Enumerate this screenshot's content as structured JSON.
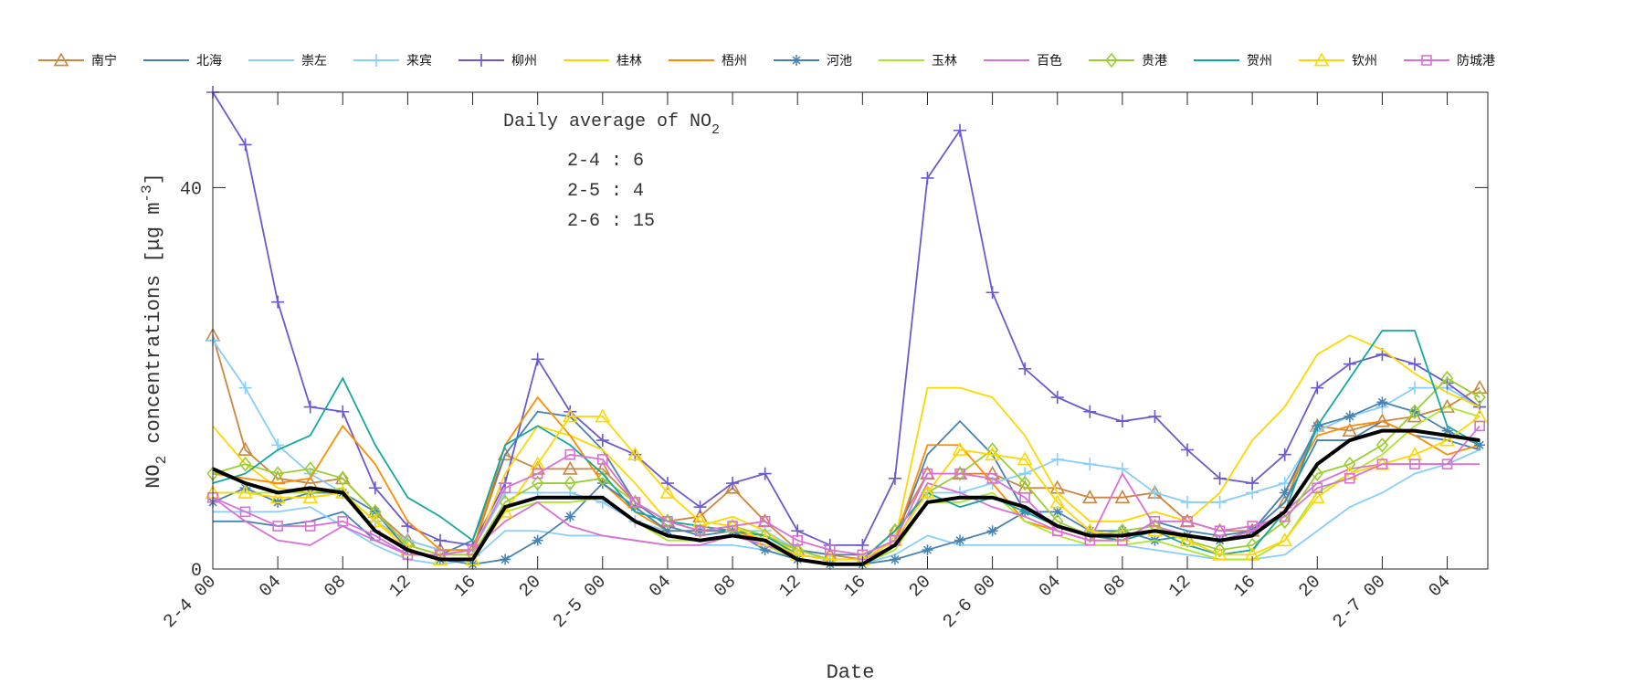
{
  "chart_data": {
    "type": "line",
    "title": "Daily average of NO2",
    "annotation": {
      "title": "Daily average of NO",
      "title_sub": "2",
      "lines": [
        "2-4 : 6",
        "2-5 : 4",
        "2-6 : 15"
      ]
    },
    "xlabel": "Date",
    "ylabel": "NO2 concentrations [μg m-3]",
    "ylabel_parts": {
      "a": "NO",
      "sub": "2",
      "b": " concentrations [μg m",
      "sup": "-3",
      "c": "]"
    },
    "ylim": [
      0,
      50
    ],
    "yticks": [
      0,
      40
    ],
    "xlim_hours": [
      0,
      78.5
    ],
    "xticks": [
      {
        "h": 0,
        "label": "2-4 00"
      },
      {
        "h": 4,
        "label": "04"
      },
      {
        "h": 8,
        "label": "08"
      },
      {
        "h": 12,
        "label": "12"
      },
      {
        "h": 16,
        "label": "16"
      },
      {
        "h": 20,
        "label": "20"
      },
      {
        "h": 24,
        "label": "2-5 00"
      },
      {
        "h": 28,
        "label": "04"
      },
      {
        "h": 32,
        "label": "08"
      },
      {
        "h": 36,
        "label": "12"
      },
      {
        "h": 40,
        "label": "16"
      },
      {
        "h": 44,
        "label": "20"
      },
      {
        "h": 48,
        "label": "2-6 00"
      },
      {
        "h": 52,
        "label": "04"
      },
      {
        "h": 56,
        "label": "08"
      },
      {
        "h": 60,
        "label": "12"
      },
      {
        "h": 64,
        "label": "16"
      },
      {
        "h": 68,
        "label": "20"
      },
      {
        "h": 72,
        "label": "2-7 00"
      },
      {
        "h": 76,
        "label": "04"
      }
    ],
    "x_hours_step": 2,
    "grid": false,
    "legend_position": "top",
    "series": [
      {
        "name": "南宁",
        "color": "#CD853F",
        "marker": "triangle",
        "values": [
          24.5,
          12.5,
          9.5,
          9,
          9.5,
          6,
          3,
          2,
          2,
          12,
          10.5,
          10.5,
          10.5,
          7,
          5,
          5.5,
          8.5,
          5,
          2,
          1.5,
          1,
          4,
          10,
          10,
          10,
          8.5,
          8.5,
          7.5,
          7.5,
          8,
          5,
          4,
          4,
          7,
          15,
          14.5,
          15.5,
          16,
          17,
          19
        ]
      },
      {
        "name": "北海",
        "color": "#4682B4",
        "marker": "none",
        "values": [
          5,
          5,
          4.5,
          5,
          6,
          3,
          1.5,
          1.5,
          3,
          12,
          16.5,
          16,
          12.5,
          7,
          4.5,
          3.5,
          4,
          3.5,
          2,
          1.5,
          1.5,
          3,
          12,
          15.5,
          12,
          6,
          4.5,
          3.5,
          3,
          5,
          4,
          3.5,
          4,
          7,
          13.5,
          13.5,
          15.5,
          14,
          13.5,
          12.5
        ]
      },
      {
        "name": "崇左",
        "color": "#87CEFA",
        "marker": "none",
        "values": [
          6,
          6,
          6,
          6.5,
          4.5,
          2.5,
          1,
          0.5,
          1,
          4,
          4,
          3.5,
          3.5,
          3,
          2.5,
          2.5,
          2.5,
          2,
          1,
          0.5,
          0.5,
          1.5,
          3.5,
          2.5,
          2.5,
          2.5,
          2.5,
          2.5,
          2.5,
          2,
          1.5,
          1,
          1,
          1.5,
          4,
          6.5,
          8,
          10,
          11,
          12.5
        ]
      },
      {
        "name": "来宾",
        "color": "#87CEFA",
        "marker": "plus",
        "values": [
          24,
          19,
          13,
          10,
          8,
          5,
          3,
          2,
          2,
          8,
          8,
          8,
          7,
          5,
          4,
          4,
          4,
          4,
          2,
          1,
          1,
          3,
          8,
          8,
          9,
          10,
          11.5,
          11,
          10.5,
          8,
          7,
          7,
          8,
          9,
          14.5,
          16,
          17,
          19,
          19,
          17
        ]
      },
      {
        "name": "柳州",
        "color": "#6A5ACD",
        "marker": "plus",
        "values": [
          50,
          44.5,
          28,
          17,
          16.5,
          8.5,
          4.5,
          3,
          2.5,
          9,
          22,
          16.5,
          13.5,
          12,
          9,
          6.5,
          9,
          10,
          4,
          2.5,
          2.5,
          9.5,
          41,
          46,
          29,
          21,
          18,
          16.5,
          15.5,
          16,
          12.5,
          9.5,
          9,
          12,
          19,
          21.5,
          22.5,
          21.5,
          19.5,
          17
        ]
      },
      {
        "name": "桂林",
        "color": "#FFD700",
        "marker": "none",
        "values": [
          15,
          11,
          8.5,
          8,
          8,
          5,
          2.5,
          1.5,
          1.5,
          10,
          15,
          14,
          12.5,
          9,
          5,
          4.5,
          5.5,
          4,
          1.5,
          1,
          1,
          3,
          19,
          19,
          18,
          14,
          8,
          5,
          5,
          6,
          5,
          8,
          13.5,
          17,
          22.5,
          24.5,
          23,
          20.5,
          18.5,
          17
        ]
      },
      {
        "name": "梧州",
        "color": "#FF8C00",
        "marker": "none",
        "values": [
          10,
          9.5,
          9,
          9.5,
          15,
          11,
          5,
          2,
          2,
          13,
          18,
          14,
          9,
          6,
          4,
          4,
          4,
          3,
          1.5,
          1,
          1,
          3,
          13,
          13,
          9,
          5,
          4,
          3,
          3,
          4,
          3.5,
          3,
          4,
          8,
          14,
          15,
          15.5,
          14,
          12,
          13
        ]
      },
      {
        "name": "河池",
        "color": "#4682B4",
        "marker": "asterisk",
        "values": [
          7,
          8.5,
          7,
          8,
          8,
          6,
          2,
          1,
          0.5,
          1,
          3,
          5.5,
          9,
          6.5,
          4,
          4,
          4,
          2,
          1,
          0.5,
          0.5,
          1,
          2,
          3,
          4,
          6,
          6,
          4,
          4,
          3,
          3.5,
          3,
          4,
          8,
          15,
          16,
          17.5,
          16.5,
          14.5,
          13
        ]
      },
      {
        "name": "玉林",
        "color": "#ADE62F",
        "marker": "none",
        "values": [
          8,
          8,
          8,
          8,
          8.5,
          4,
          2,
          1,
          1,
          6,
          7,
          7,
          7.5,
          5,
          3,
          3,
          3.5,
          2.5,
          1,
          0.5,
          0.5,
          2,
          7,
          7,
          8,
          5,
          3.5,
          2.5,
          2.5,
          3,
          2,
          1,
          1,
          3,
          8,
          10,
          12,
          15,
          17,
          16
        ]
      },
      {
        "name": "百色",
        "color": "#DA70D6",
        "marker": "none",
        "values": [
          7.5,
          5,
          3,
          2.5,
          4.5,
          3,
          1.5,
          1.5,
          2,
          5,
          7,
          4.5,
          3.5,
          3,
          2.5,
          2.5,
          3.5,
          2.5,
          1.5,
          1,
          1,
          2.5,
          9,
          8,
          6.5,
          5.5,
          4,
          3,
          10,
          4.5,
          3.5,
          3,
          4,
          6,
          9,
          10.5,
          11,
          11,
          11,
          11
        ]
      },
      {
        "name": "贵港",
        "color": "#9ACD32",
        "marker": "diamond",
        "values": [
          10,
          11,
          10,
          10.5,
          9.5,
          6,
          2.5,
          1.5,
          1.5,
          7,
          9,
          9,
          9.5,
          7,
          5,
          4,
          4.5,
          3.5,
          2,
          1,
          1,
          4,
          8,
          10,
          12.5,
          9,
          5,
          3.5,
          4,
          4.5,
          3,
          2,
          2.5,
          5,
          10,
          11,
          13,
          16.5,
          20,
          18
        ]
      },
      {
        "name": "贺州",
        "color": "#13A89E",
        "marker": "none",
        "values": [
          9,
          10,
          12.5,
          14,
          20,
          13,
          7.5,
          5.5,
          3,
          13,
          15,
          13,
          10,
          6,
          5,
          4.5,
          4,
          3.5,
          1.5,
          1,
          1,
          4,
          8,
          6.5,
          7.5,
          6,
          4.5,
          3.5,
          3,
          4,
          2.5,
          1.5,
          2,
          6,
          15,
          20,
          25,
          25,
          15,
          13
        ]
      },
      {
        "name": "钦州",
        "color": "#FFD700",
        "marker": "triangle",
        "values": [
          8,
          8,
          7.5,
          7.5,
          8,
          5,
          2,
          1,
          1,
          6,
          11,
          16,
          16,
          12,
          8,
          5,
          4.5,
          3,
          1.5,
          1,
          1,
          3,
          8,
          12.5,
          12,
          11.5,
          7,
          4,
          3.5,
          4,
          3,
          1.5,
          1.5,
          3,
          7.5,
          10,
          11,
          12,
          13.5,
          16
        ]
      },
      {
        "name": "防城港",
        "color": "#DA70D6",
        "marker": "square",
        "values": [
          7.5,
          6,
          4.5,
          4.5,
          5,
          3.5,
          1.5,
          1.5,
          2,
          8.5,
          10,
          12,
          11.5,
          7,
          5,
          4,
          4.5,
          5,
          3,
          2,
          1.5,
          3,
          10,
          10,
          9.5,
          7.5,
          4,
          3,
          3,
          5,
          5,
          4,
          4.5,
          5.5,
          8.5,
          9.5,
          11,
          11,
          11,
          15
        ]
      }
    ],
    "mean_series": {
      "color": "#000000",
      "values": [
        10.5,
        9,
        8,
        8.5,
        8,
        4,
        2,
        1,
        1,
        6.5,
        7.5,
        7.5,
        7.5,
        5,
        3.5,
        3,
        3.5,
        3,
        1,
        0.5,
        0.5,
        2.5,
        7,
        7.5,
        7.5,
        6.5,
        4.5,
        3.5,
        3.5,
        4,
        3.5,
        3,
        3.5,
        6,
        11,
        13.5,
        14.5,
        14.5,
        14,
        13.5
      ]
    }
  }
}
